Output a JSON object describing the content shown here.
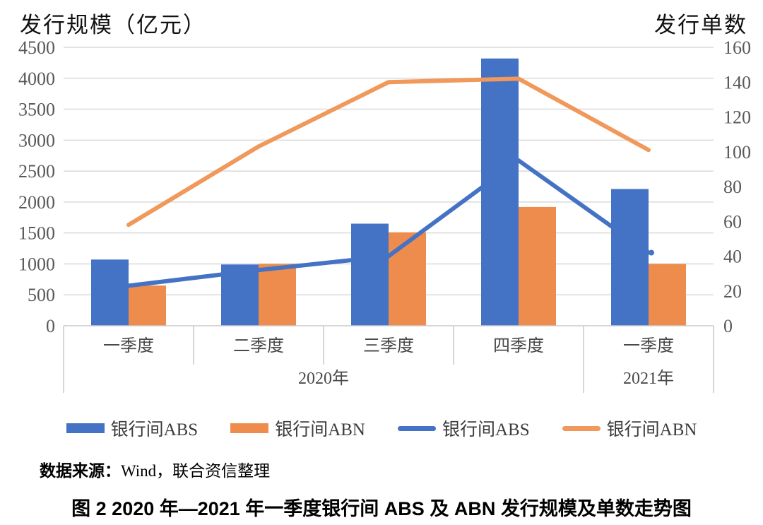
{
  "chart_data": {
    "type": "bar+line combo",
    "categories": [
      "一季度",
      "二季度",
      "三季度",
      "四季度",
      "一季度"
    ],
    "year_groups": [
      {
        "label": "2020年",
        "quarters": 4
      },
      {
        "label": "2021年",
        "quarters": 1
      }
    ],
    "series": [
      {
        "name": "银行间ABS",
        "slug": "interbank-abs-scale",
        "type": "bar",
        "axis": "left",
        "color": "#4472C4",
        "values": [
          1070,
          990,
          1650,
          4320,
          2210
        ]
      },
      {
        "name": "银行间ABN",
        "slug": "interbank-abn-scale",
        "type": "bar",
        "axis": "left",
        "color": "#ED8C4C",
        "values": [
          650,
          1000,
          1510,
          1920,
          1000
        ]
      },
      {
        "name": "银行间ABS",
        "slug": "interbank-abs-count",
        "type": "line",
        "axis": "right",
        "color": "#4472C4",
        "values": [
          23,
          32,
          40,
          95,
          42
        ]
      },
      {
        "name": "银行间ABN",
        "slug": "interbank-abn-count",
        "type": "line",
        "axis": "right",
        "color": "#F0995B",
        "values": [
          58,
          103,
          140,
          142,
          101
        ]
      }
    ],
    "left_axis": {
      "title": "发行规模（亿元）",
      "min": 0,
      "max": 4500,
      "step": 500,
      "ticks": [
        0,
        500,
        1000,
        1500,
        2000,
        2500,
        3000,
        3500,
        4000,
        4500
      ]
    },
    "right_axis": {
      "title": "发行单数",
      "min": 0,
      "max": 160,
      "step": 20,
      "ticks": [
        0,
        20,
        40,
        60,
        80,
        100,
        120,
        140,
        160
      ]
    },
    "grid": true,
    "legend_position": "bottom"
  },
  "legend": {
    "items": [
      {
        "label": "银行间ABS",
        "swatch": "bar",
        "color": "#4472C4"
      },
      {
        "label": "银行间ABN",
        "swatch": "bar",
        "color": "#ED8C4C"
      },
      {
        "label": "银行间ABS",
        "swatch": "line",
        "color": "#4472C4"
      },
      {
        "label": "银行间ABN",
        "swatch": "line",
        "color": "#F0995B"
      }
    ]
  },
  "source": {
    "label": "数据来源：",
    "text": "Wind，联合资信整理"
  },
  "caption": "图 2  2020 年—2021 年一季度银行间 ABS 及 ABN 发行规模及单数走势图",
  "colors": {
    "gridline": "#DADADA",
    "axis_line": "#C8C8C8",
    "tick_text": "#595959",
    "category_text": "#4a4a4a"
  }
}
